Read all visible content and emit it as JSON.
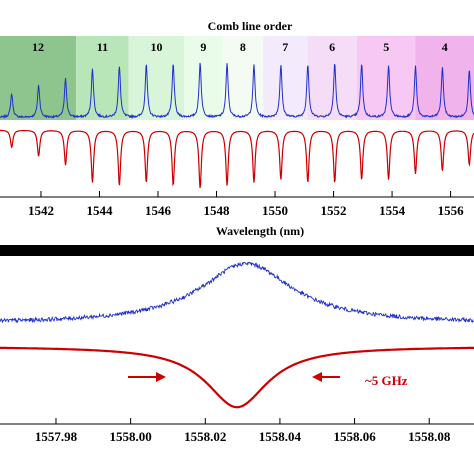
{
  "chart_data": [
    {
      "type": "line",
      "title": "Comb line order",
      "xlabel": "Wavelength (nm)",
      "ylabel": "",
      "xlim": [
        1540.6,
        1556.8
      ],
      "xticks": [
        1542,
        1544,
        1546,
        1548,
        1550,
        1552,
        1554,
        1556
      ],
      "grid": false,
      "order_regions": [
        {
          "label": "12",
          "start": 1540.6,
          "end": 1543.2,
          "color": "#8ec58e"
        },
        {
          "label": "11",
          "start": 1543.2,
          "end": 1545.0,
          "color": "#b9e6b9"
        },
        {
          "label": "10",
          "start": 1545.0,
          "end": 1546.9,
          "color": "#d9f5d9"
        },
        {
          "label": "9",
          "start": 1546.9,
          "end": 1548.2,
          "color": "#e9fbe9"
        },
        {
          "label": "8",
          "start": 1548.2,
          "end": 1549.6,
          "color": "#f3fbf3"
        },
        {
          "label": "7",
          "start": 1549.6,
          "end": 1551.1,
          "color": "#f3eafb"
        },
        {
          "label": "6",
          "start": 1551.1,
          "end": 1552.8,
          "color": "#f5ddf8"
        },
        {
          "label": "5",
          "start": 1552.8,
          "end": 1554.8,
          "color": "#f6c8f3"
        },
        {
          "label": "4",
          "start": 1554.8,
          "end": 1556.8,
          "color": "#f1b3ec"
        }
      ],
      "series": [
        {
          "color": "#2030cc",
          "peaks_nm": [
            1541.0,
            1541.92,
            1542.84,
            1543.76,
            1544.68,
            1545.6,
            1546.52,
            1547.44,
            1548.36,
            1549.28,
            1550.2,
            1551.12,
            1552.04,
            1552.96,
            1553.88,
            1554.8,
            1555.72,
            1556.64
          ],
          "peak_heights": [
            0.38,
            0.52,
            0.62,
            0.78,
            0.82,
            0.85,
            0.86,
            0.88,
            0.86,
            0.84,
            0.84,
            0.86,
            0.88,
            0.86,
            0.84,
            0.82,
            0.8,
            0.78
          ]
        },
        {
          "color": "#cc0000",
          "dips_nm": [
            1541.0,
            1541.92,
            1542.84,
            1543.76,
            1544.68,
            1545.6,
            1546.52,
            1547.44,
            1548.36,
            1549.28,
            1550.2,
            1551.12,
            1552.04,
            1552.96,
            1553.88,
            1554.8,
            1555.72,
            1556.64
          ],
          "dip_depths": [
            0.3,
            0.45,
            0.6,
            0.9,
            0.95,
            0.9,
            0.95,
            1.0,
            0.95,
            0.9,
            0.85,
            0.9,
            0.9,
            0.85,
            0.85,
            0.75,
            0.7,
            0.6
          ]
        }
      ]
    },
    {
      "type": "line",
      "title": "",
      "xlabel": "",
      "ylabel": "",
      "xlim": [
        1557.965,
        1558.092
      ],
      "xticks": [
        1557.98,
        1558.0,
        1558.02,
        1558.04,
        1558.06,
        1558.08
      ],
      "xtick_labels": [
        "1557.98",
        "1558.00",
        "1558.02",
        "1558.04",
        "1558.06",
        "1558.08"
      ],
      "grid": false,
      "annotation": "~5 GHz",
      "series": [
        {
          "color": "#2030cc",
          "center": 1558.031,
          "width": 0.03,
          "baseline": 0.18,
          "peak": 0.85
        },
        {
          "color": "#cc0000",
          "center": 1558.0285,
          "width": 0.02,
          "baseline": 0.1,
          "depth": 0.95
        }
      ]
    }
  ]
}
